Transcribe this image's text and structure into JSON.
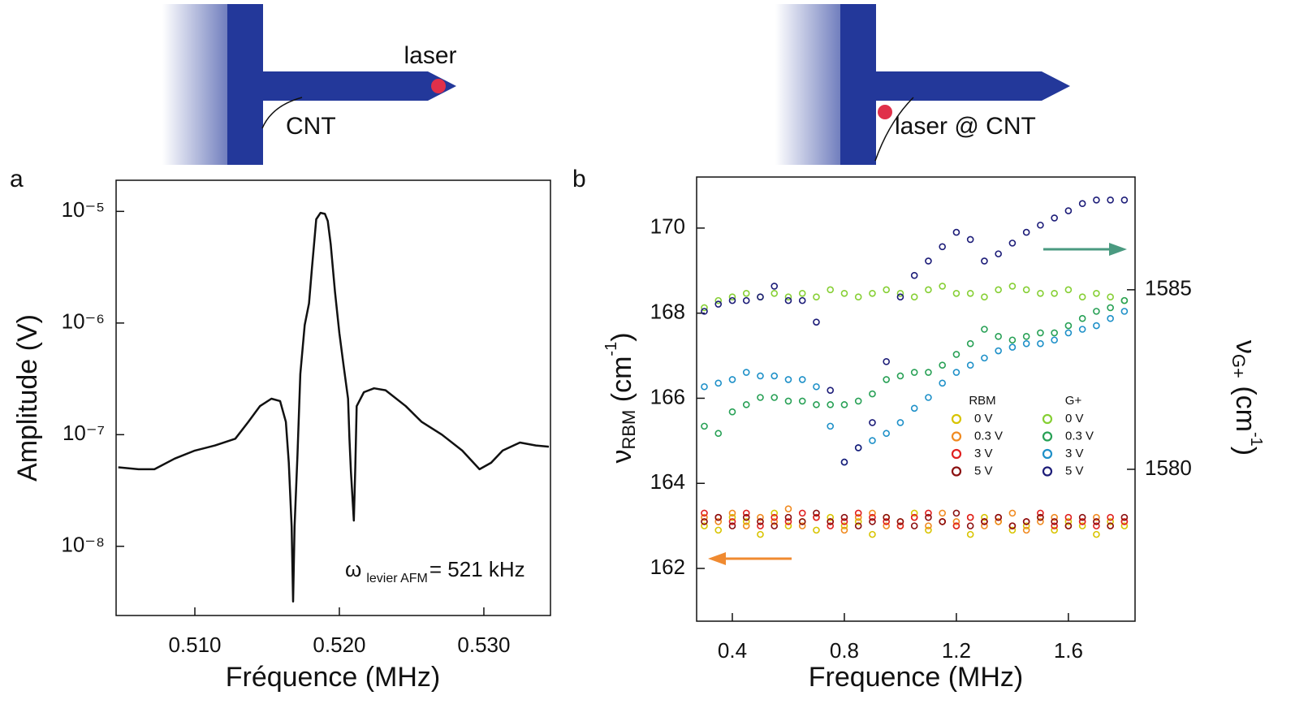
{
  "chart_data": [
    {
      "type": "line",
      "panel_label": "a",
      "schematic_labels": [
        "laser",
        "CNT"
      ],
      "xlabel": "Fréquence (MHz)",
      "ylabel": "Amplitude (V)",
      "annotation": {
        "symbol": "ω",
        "subscript": "levier AFM",
        "text": "= 521 kHz"
      },
      "color": "#111111",
      "yscale": "log",
      "xlim": [
        0.50455,
        0.53461
      ],
      "ylim": [
        2.4e-09,
        1.9e-05
      ],
      "xticks": [
        {
          "value": 0.51,
          "label": "0.510"
        },
        {
          "value": 0.52,
          "label": "0.520"
        },
        {
          "value": 0.53,
          "label": "0.530"
        }
      ],
      "yticks": [
        {
          "value": 1e-05,
          "label": "10⁻⁵"
        },
        {
          "value": 1e-06,
          "label": "10⁻⁶"
        },
        {
          "value": 1e-07,
          "label": "10⁻⁷"
        },
        {
          "value": 1e-08,
          "label": "10⁻⁸"
        }
      ],
      "x": [
        0.5047,
        0.5061,
        0.5072,
        0.5086,
        0.51,
        0.5114,
        0.5128,
        0.5137,
        0.5145,
        0.5153,
        0.5159,
        0.5163,
        0.5165,
        0.5167,
        0.5168,
        0.5169,
        0.5171,
        0.5173,
        0.5176,
        0.5179,
        0.5181,
        0.5184,
        0.5187,
        0.519,
        0.5192,
        0.5194,
        0.5197,
        0.52,
        0.5203,
        0.5206,
        0.5207,
        0.5208,
        0.521,
        0.5211,
        0.5212,
        0.5217,
        0.5224,
        0.5232,
        0.5246,
        0.5257,
        0.5271,
        0.5285,
        0.5297,
        0.5305,
        0.5313,
        0.5325,
        0.5336,
        0.5345
      ],
      "values": [
        5.1e-08,
        4.9e-08,
        4.9e-08,
        6.1e-08,
        7.2e-08,
        8e-08,
        9.2e-08,
        1.3e-07,
        1.8e-07,
        2.1e-07,
        2e-07,
        1.3e-07,
        5.6e-08,
        1.5e-08,
        3.2e-09,
        1.5e-08,
        6.6e-08,
        3.5e-07,
        9.6e-07,
        1.5e-06,
        3.1e-06,
        8.5e-06,
        9.7e-06,
        9.5e-06,
        8.2e-06,
        5.1e-06,
        1.9e-06,
        8.1e-07,
        4.1e-07,
        2.1e-07,
        9.2e-08,
        4.7e-08,
        1.7e-08,
        5.1e-08,
        1.8e-07,
        2.4e-07,
        2.6e-07,
        2.5e-07,
        1.8e-07,
        1.3e-07,
        1e-07,
        7.2e-08,
        4.9e-08,
        5.6e-08,
        7.2e-08,
        8.5e-08,
        8e-08,
        7.8e-08
      ]
    },
    {
      "type": "scatter",
      "panel_label": "b",
      "schematic_labels": [
        "laser @ CNT"
      ],
      "xlabel": "Frequence (MHz)",
      "ylabel": {
        "symbol": "ν",
        "subscript": "RBM",
        "text": " (cm",
        "superscript": "-1",
        "close": ")"
      },
      "y2label": {
        "symbol": "ν",
        "subscript": "G+",
        "text": " (cm",
        "superscript": "-1",
        "close": ")"
      },
      "legend_titles": [
        "RBM",
        "G+"
      ],
      "xlim": [
        0.2725,
        1.838
      ],
      "ylim": [
        160.76,
        171.2
      ],
      "y2lim": [
        1575.77,
        1588.14
      ],
      "xticks": [
        0.4,
        0.8,
        1.2,
        1.6
      ],
      "yticks": [
        162,
        164,
        166,
        168,
        170
      ],
      "y2ticks": [
        1580,
        1585
      ],
      "x": [
        0.3,
        0.35,
        0.4,
        0.45,
        0.5,
        0.55,
        0.6,
        0.65,
        0.7,
        0.75,
        0.8,
        0.85,
        0.9,
        0.95,
        1.0,
        1.05,
        1.1,
        1.15,
        1.2,
        1.25,
        1.3,
        1.35,
        1.4,
        1.45,
        1.5,
        1.55,
        1.6,
        1.65,
        1.7,
        1.75,
        1.8
      ],
      "series": [
        {
          "name": "0 V",
          "color": "#d8c400",
          "values": [
            163.0,
            162.9,
            163.2,
            163.1,
            162.8,
            163.3,
            163.0,
            163.1,
            162.9,
            163.2,
            163.0,
            163.1,
            162.8,
            163.2,
            163.0,
            163.3,
            162.9,
            163.1,
            163.0,
            162.8,
            163.2,
            163.1,
            162.9,
            163.0,
            163.2,
            162.9,
            163.1,
            163.0,
            162.8,
            163.1,
            163.0
          ]
        },
        {
          "name": "0.3 V",
          "color": "#f08a20",
          "values": [
            163.2,
            163.1,
            163.3,
            163.0,
            163.2,
            163.1,
            163.4,
            163.0,
            163.2,
            163.1,
            162.9,
            163.2,
            163.3,
            163.0,
            163.1,
            163.2,
            163.0,
            163.3,
            163.1,
            163.2,
            163.0,
            163.1,
            163.3,
            162.9,
            163.1,
            163.2,
            163.0,
            163.1,
            163.2,
            163.0,
            163.1
          ]
        },
        {
          "name": "3 V",
          "color": "#e02020",
          "values": [
            163.3,
            163.2,
            163.1,
            163.3,
            163.0,
            163.2,
            163.1,
            163.3,
            163.2,
            163.0,
            163.1,
            163.3,
            163.2,
            163.1,
            163.0,
            163.2,
            163.3,
            163.1,
            163.0,
            163.2,
            163.1,
            163.2,
            163.0,
            163.1,
            163.3,
            163.0,
            163.2,
            163.1,
            163.0,
            163.2,
            163.1
          ]
        },
        {
          "name": "5 V",
          "color": "#8b1010",
          "values": [
            163.1,
            163.2,
            163.0,
            163.2,
            163.1,
            163.0,
            163.2,
            163.1,
            163.3,
            163.1,
            163.2,
            163.0,
            163.1,
            163.2,
            163.1,
            163.0,
            163.2,
            163.1,
            163.3,
            163.0,
            163.1,
            163.2,
            163.0,
            163.1,
            163.2,
            163.1,
            163.0,
            163.2,
            163.1,
            163.0,
            163.2
          ]
        },
        {
          "name": "0 V",
          "color": "#86cf34",
          "axis": "y2",
          "values": [
            1584.5,
            1584.7,
            1584.8,
            1584.9,
            1584.8,
            1584.9,
            1584.8,
            1584.9,
            1584.8,
            1585.0,
            1584.9,
            1584.8,
            1584.9,
            1585.0,
            1584.9,
            1584.8,
            1585.0,
            1585.1,
            1584.9,
            1584.9,
            1584.8,
            1585.0,
            1585.1,
            1585.0,
            1584.9,
            1584.9,
            1585.0,
            1584.8,
            1584.9,
            1584.8,
            1584.7
          ]
        },
        {
          "name": "0.3 V",
          "color": "#27a055",
          "axis": "y2",
          "values": [
            1581.2,
            1581.0,
            1581.6,
            1581.8,
            1582.0,
            1582.0,
            1581.9,
            1581.9,
            1581.8,
            1581.8,
            1581.8,
            1581.9,
            1582.1,
            1582.5,
            1582.6,
            1582.7,
            1582.7,
            1582.9,
            1583.2,
            1583.5,
            1583.9,
            1583.7,
            1583.6,
            1583.7,
            1583.8,
            1583.8,
            1584.0,
            1584.2,
            1584.4,
            1584.5,
            1584.7
          ]
        },
        {
          "name": "3 V",
          "color": "#1e90c8",
          "axis": "y2",
          "values": [
            1582.3,
            1582.4,
            1582.5,
            1582.7,
            1582.6,
            1582.6,
            1582.5,
            1582.5,
            1582.3,
            1581.2,
            1580.2,
            1580.6,
            1580.8,
            1581.0,
            1581.3,
            1581.7,
            1582.0,
            1582.4,
            1582.7,
            1582.9,
            1583.1,
            1583.3,
            1583.4,
            1583.5,
            1583.5,
            1583.6,
            1583.8,
            1583.9,
            1584.0,
            1584.2,
            1584.4
          ]
        },
        {
          "name": "5 V",
          "color": "#1c1c78",
          "axis": "y2",
          "values": [
            1584.4,
            1584.6,
            1584.7,
            1584.7,
            1584.8,
            1585.1,
            1584.7,
            1584.7,
            1584.1,
            1582.2,
            1580.2,
            1580.6,
            1581.3,
            1583.0,
            1584.8,
            1585.4,
            1585.8,
            1586.2,
            1586.6,
            1586.4,
            1585.8,
            1586.0,
            1586.3,
            1586.6,
            1586.8,
            1587.0,
            1587.2,
            1587.4,
            1587.5,
            1587.5,
            1587.5
          ]
        }
      ]
    }
  ]
}
